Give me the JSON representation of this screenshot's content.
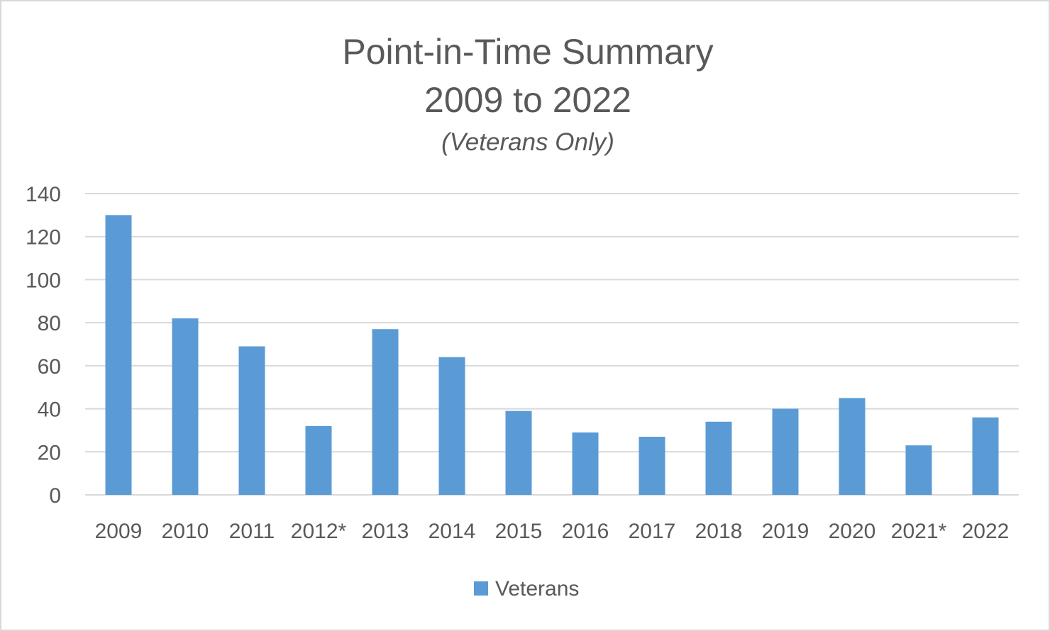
{
  "chart_data": {
    "type": "bar",
    "title_line1": "Point-in-Time Summary",
    "title_line2": "2009 to 2022",
    "subtitle": "(Veterans Only)",
    "xlabel": "",
    "ylabel": "",
    "ylim": [
      0,
      140
    ],
    "yticks": [
      0,
      20,
      40,
      60,
      80,
      100,
      120,
      140
    ],
    "categories": [
      "2009",
      "2010",
      "2011",
      "2012*",
      "2013",
      "2014",
      "2015",
      "2016",
      "2017",
      "2018",
      "2019",
      "2020",
      "2021*",
      "2022"
    ],
    "series": [
      {
        "name": "Veterans",
        "color": "#5b9bd5",
        "values": [
          130,
          82,
          69,
          32,
          77,
          64,
          39,
          29,
          27,
          34,
          40,
          45,
          23,
          36
        ]
      }
    ],
    "grid": true,
    "legend_position": "bottom"
  }
}
